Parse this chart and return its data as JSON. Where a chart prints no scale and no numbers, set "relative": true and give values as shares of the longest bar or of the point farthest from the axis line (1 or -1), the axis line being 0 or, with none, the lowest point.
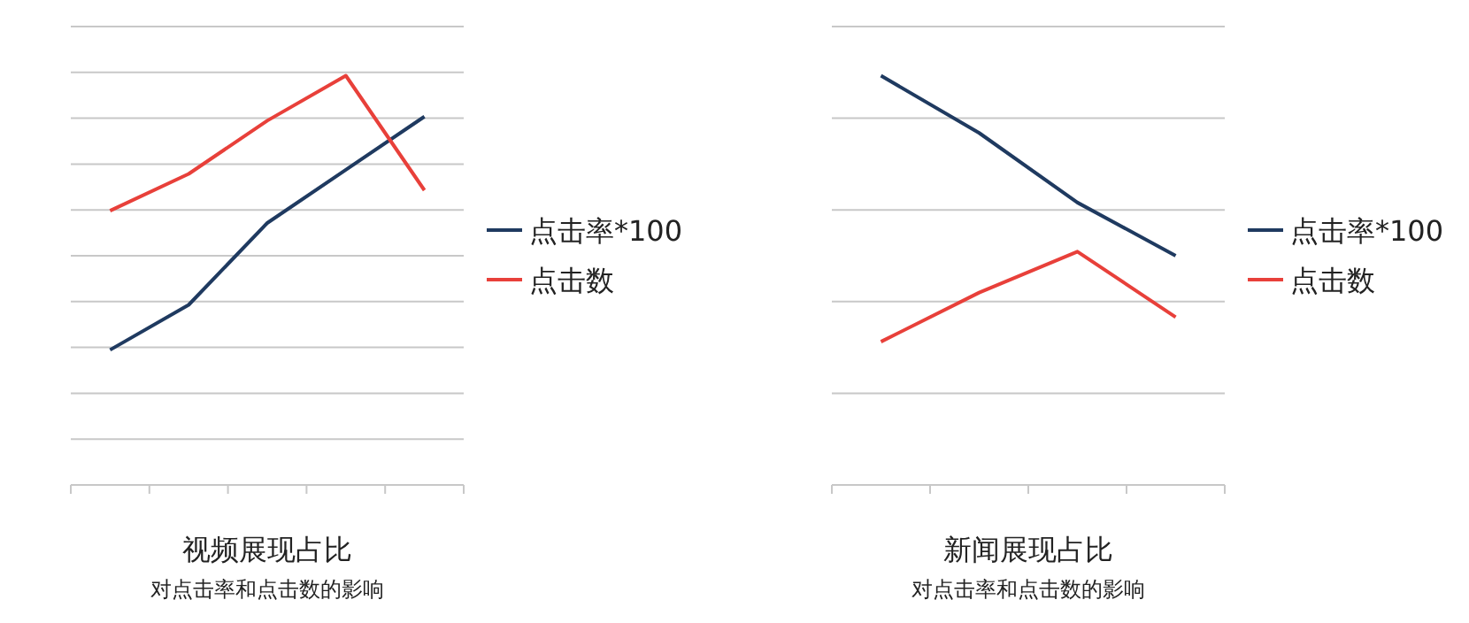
{
  "chart_data": [
    {
      "type": "line",
      "title": "视频展现占比",
      "subtitle": "对点击率和点击数的影响",
      "categories": [
        null,
        null,
        null,
        null,
        null
      ],
      "relative": true,
      "grid": "y",
      "legend": "right",
      "series": [
        {
          "name": "点击率*100",
          "color": "#1f3a60",
          "values": [
            0.33,
            0.44,
            0.64,
            0.77,
            0.9
          ]
        },
        {
          "name": "点击数",
          "color": "#e8403a",
          "values": [
            0.67,
            0.76,
            0.89,
            1,
            0.72
          ]
        }
      ]
    },
    {
      "type": "line",
      "title": "新闻展现占比",
      "subtitle": "对点击率和点击数的影响",
      "categories": [
        null,
        null,
        null,
        null
      ],
      "relative": true,
      "grid": "y",
      "legend": "right",
      "series": [
        {
          "name": "点击率*100",
          "color": "#1f3a60",
          "values": [
            1,
            0.86,
            0.69,
            0.56
          ]
        },
        {
          "name": "点击数",
          "color": "#e8403a",
          "values": [
            0.35,
            0.47,
            0.57,
            0.41
          ]
        }
      ]
    }
  ]
}
